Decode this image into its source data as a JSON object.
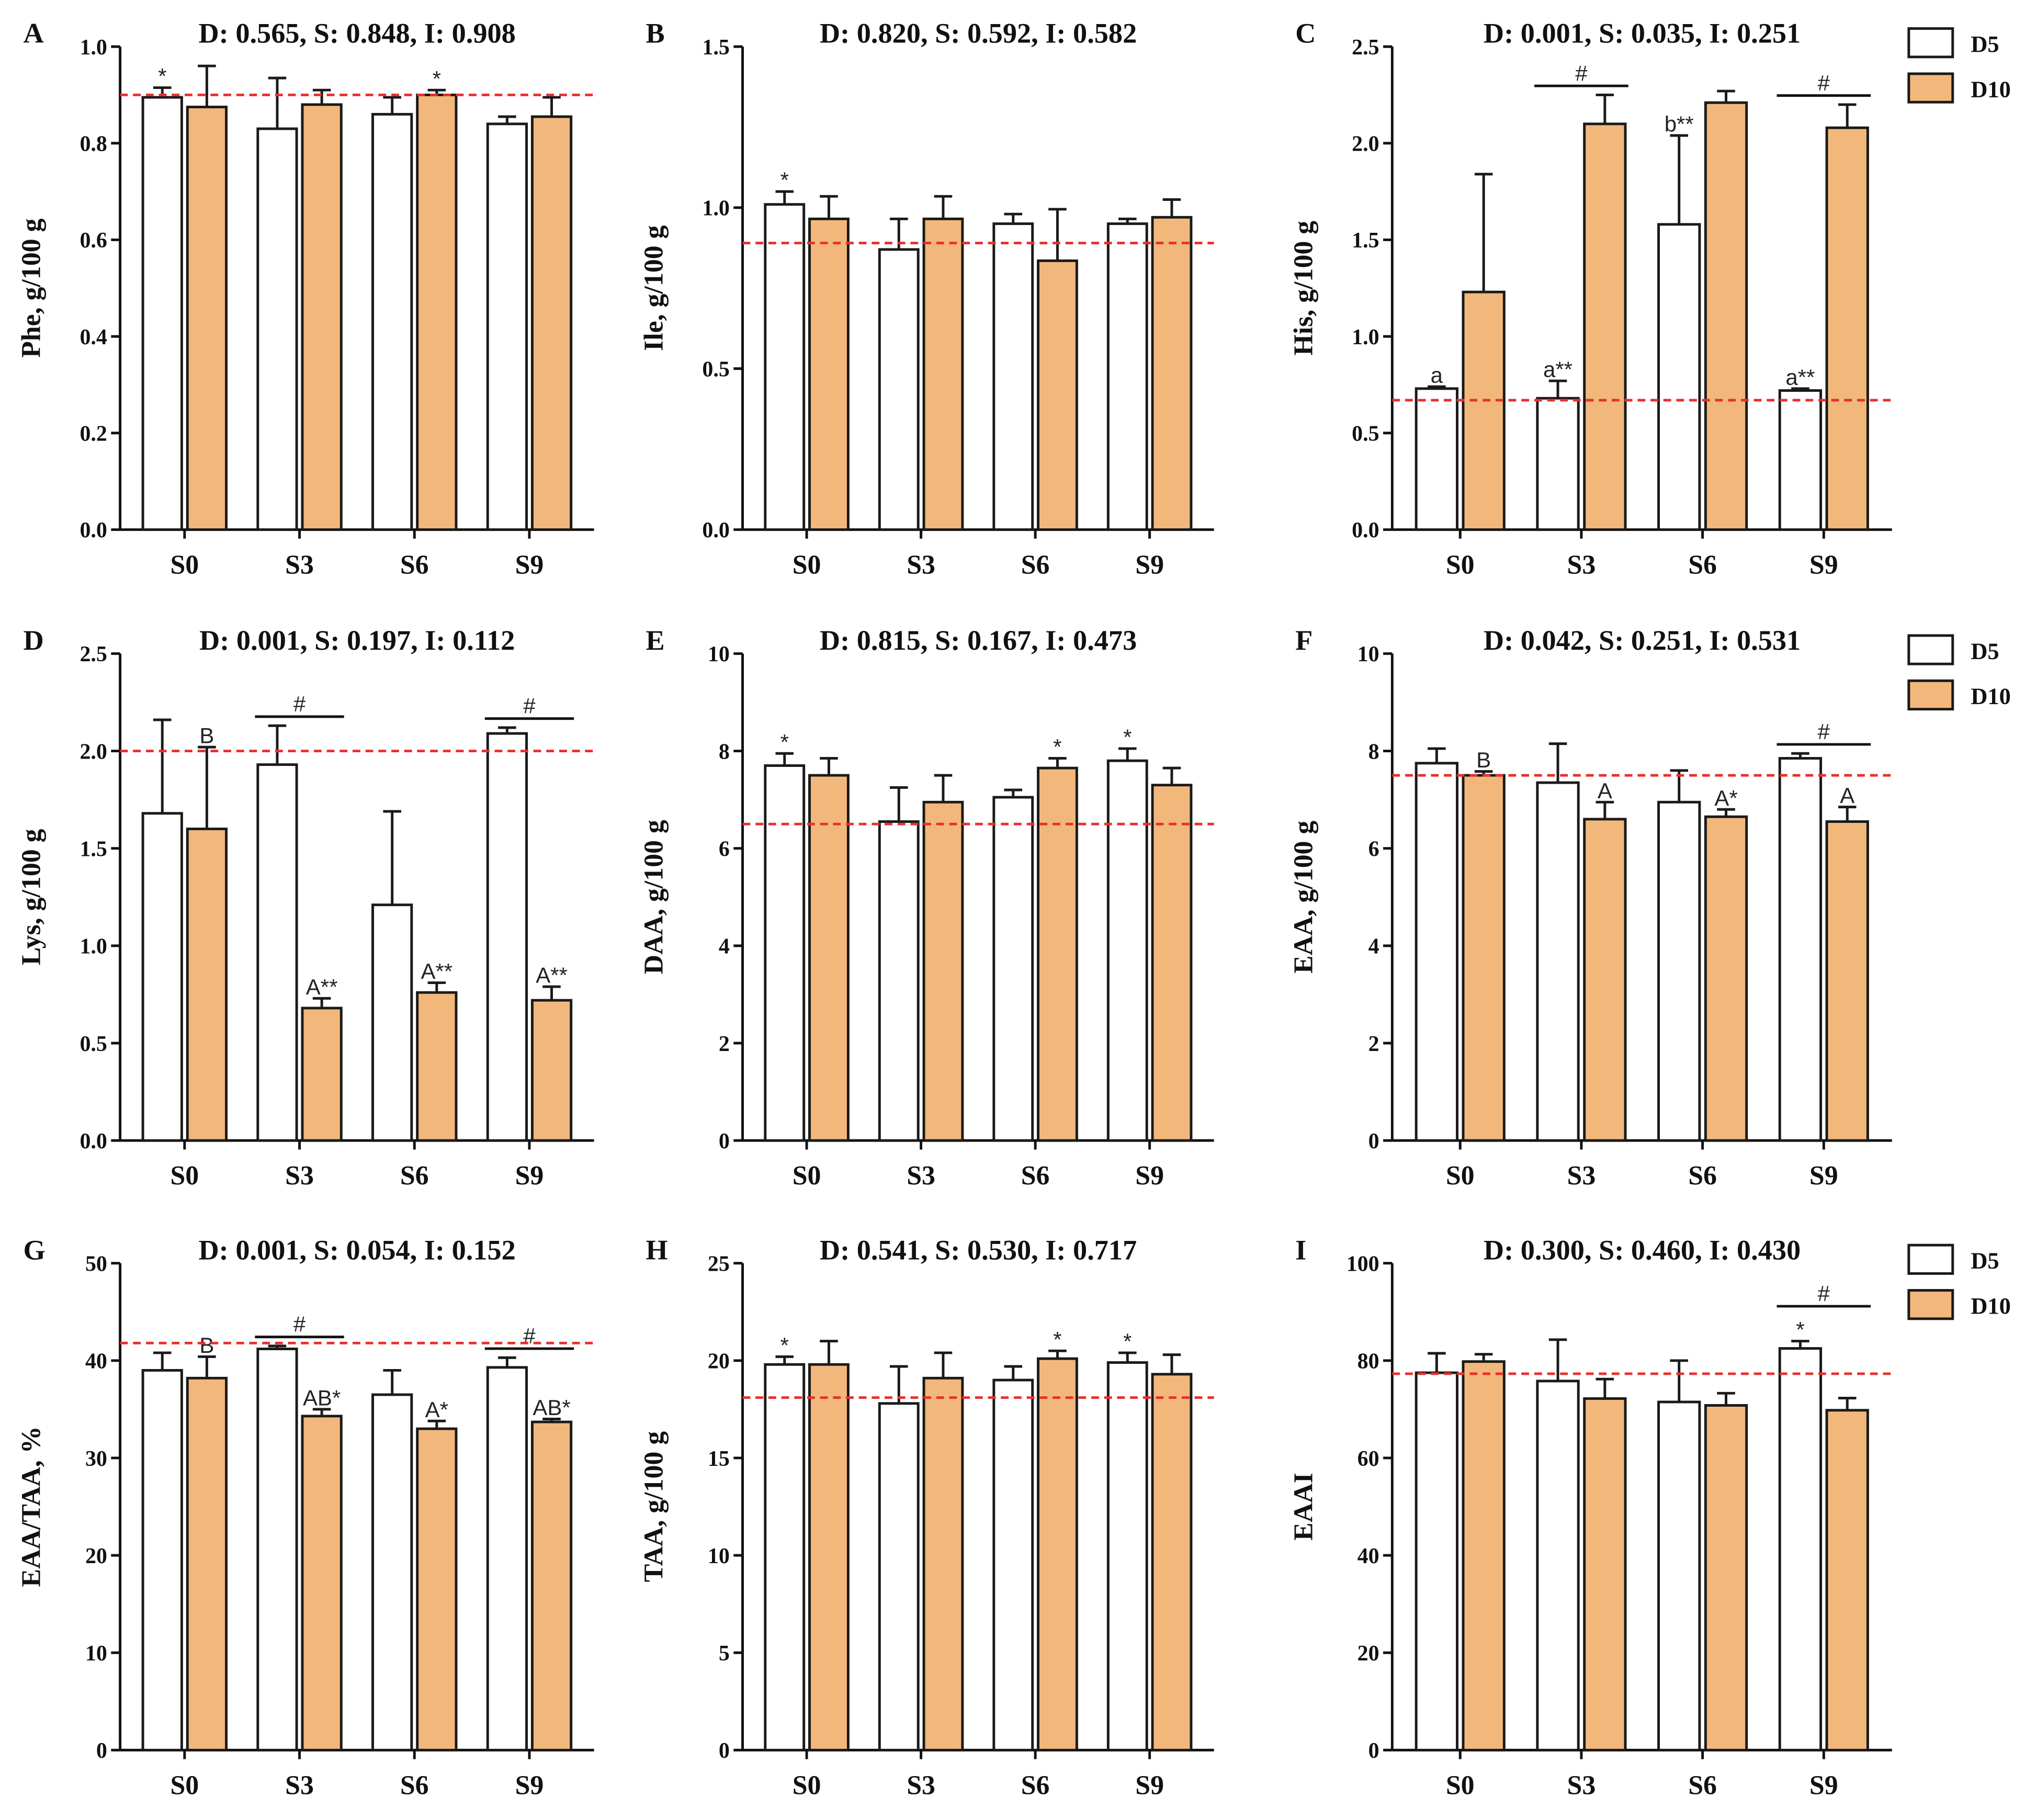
{
  "colors": {
    "D5": "#ffffff",
    "D10": "#f2b87b",
    "outline": "#1a1a1a",
    "ref": "#e8302c"
  },
  "legend": [
    "D5",
    "D10"
  ],
  "chart_data": [
    {
      "type": "bar",
      "panel": "A",
      "title": "D: 0.565, S: 0.848, I: 0.908",
      "ylabel": "Phe, g/100 g",
      "categories": [
        "S0",
        "S3",
        "S6",
        "S9"
      ],
      "ylim": [
        0,
        1.0
      ],
      "yticks": [
        "0.0",
        "0.2",
        "0.4",
        "0.6",
        "0.8",
        "1.0"
      ],
      "ref": 0.9,
      "series": [
        {
          "name": "D5",
          "values": [
            0.895,
            0.83,
            0.86,
            0.84
          ],
          "errors": [
            0.02,
            0.105,
            0.035,
            0.015
          ],
          "annotations": [
            "*",
            "",
            "",
            ""
          ]
        },
        {
          "name": "D10",
          "values": [
            0.875,
            0.88,
            0.9,
            0.855
          ],
          "errors": [
            0.085,
            0.03,
            0.01,
            0.04
          ],
          "annotations": [
            "",
            "",
            "*",
            ""
          ]
        }
      ],
      "brackets": [
        "",
        "",
        "",
        ""
      ]
    },
    {
      "type": "bar",
      "panel": "B",
      "title": "D: 0.820, S: 0.592, I: 0.582",
      "ylabel": "Ile, g/100 g",
      "categories": [
        "S0",
        "S3",
        "S6",
        "S9"
      ],
      "ylim": [
        0,
        1.5
      ],
      "yticks": [
        "0.0",
        "0.5",
        "1.0",
        "1.5"
      ],
      "ref": 0.89,
      "series": [
        {
          "name": "D5",
          "values": [
            1.01,
            0.87,
            0.95,
            0.95
          ],
          "errors": [
            0.04,
            0.095,
            0.03,
            0.015
          ],
          "annotations": [
            "*",
            "",
            "",
            ""
          ]
        },
        {
          "name": "D10",
          "values": [
            0.965,
            0.965,
            0.835,
            0.97
          ],
          "errors": [
            0.07,
            0.07,
            0.16,
            0.055
          ],
          "annotations": [
            "",
            "",
            "",
            ""
          ]
        }
      ],
      "brackets": [
        "",
        "",
        "",
        ""
      ]
    },
    {
      "type": "bar",
      "panel": "C",
      "title": "D: 0.001, S: 0.035, I: 0.251",
      "ylabel": "His, g/100 g",
      "categories": [
        "S0",
        "S3",
        "S6",
        "S9"
      ],
      "ylim": [
        0,
        2.5
      ],
      "yticks": [
        "0.0",
        "0.5",
        "1.0",
        "1.5",
        "2.0",
        "2.5"
      ],
      "ref": 0.67,
      "legend": true,
      "series": [
        {
          "name": "D5",
          "values": [
            0.73,
            0.68,
            1.58,
            0.72
          ],
          "errors": [
            0.01,
            0.09,
            0.46,
            0.01
          ],
          "annotations": [
            "a",
            "a**",
            "b**",
            "a**"
          ]
        },
        {
          "name": "D10",
          "values": [
            1.23,
            2.1,
            2.21,
            2.08
          ],
          "errors": [
            0.61,
            0.15,
            0.06,
            0.12
          ],
          "annotations": [
            "",
            "",
            "",
            ""
          ]
        }
      ],
      "brackets": [
        "",
        "#",
        "",
        "#"
      ]
    },
    {
      "type": "bar",
      "panel": "D",
      "title": "D: 0.001, S: 0.197, I: 0.112",
      "ylabel": "Lys, g/100 g",
      "categories": [
        "S0",
        "S3",
        "S6",
        "S9"
      ],
      "ylim": [
        0,
        2.5
      ],
      "yticks": [
        "0.0",
        "0.5",
        "1.0",
        "1.5",
        "2.0",
        "2.5"
      ],
      "ref": 2.0,
      "series": [
        {
          "name": "D5",
          "values": [
            1.68,
            1.93,
            1.21,
            2.09
          ],
          "errors": [
            0.48,
            0.2,
            0.48,
            0.03
          ],
          "annotations": [
            "",
            "",
            "",
            ""
          ]
        },
        {
          "name": "D10",
          "values": [
            1.6,
            0.68,
            0.76,
            0.72
          ],
          "errors": [
            0.42,
            0.05,
            0.05,
            0.07
          ],
          "annotations": [
            "B",
            "A**",
            "A**",
            "A**"
          ]
        }
      ],
      "brackets": [
        "",
        "#",
        "",
        "#"
      ]
    },
    {
      "type": "bar",
      "panel": "E",
      "title": "D: 0.815, S: 0.167, I: 0.473",
      "ylabel": "DAA, g/100 g",
      "categories": [
        "S0",
        "S3",
        "S6",
        "S9"
      ],
      "ylim": [
        0,
        10
      ],
      "yticks": [
        "0",
        "2",
        "4",
        "6",
        "8",
        "10"
      ],
      "ref": 6.5,
      "series": [
        {
          "name": "D5",
          "values": [
            7.7,
            6.55,
            7.05,
            7.8
          ],
          "errors": [
            0.25,
            0.7,
            0.15,
            0.25
          ],
          "annotations": [
            "*",
            "",
            "",
            "*"
          ]
        },
        {
          "name": "D10",
          "values": [
            7.5,
            6.95,
            7.65,
            7.3
          ],
          "errors": [
            0.35,
            0.55,
            0.2,
            0.35
          ],
          "annotations": [
            "",
            "",
            "*",
            ""
          ]
        }
      ],
      "brackets": [
        "",
        "",
        "",
        ""
      ]
    },
    {
      "type": "bar",
      "panel": "F",
      "title": "D: 0.042, S: 0.251, I: 0.531",
      "ylabel": "EAA, g/100 g",
      "categories": [
        "S0",
        "S3",
        "S6",
        "S9"
      ],
      "ylim": [
        0,
        10
      ],
      "yticks": [
        "0",
        "2",
        "4",
        "6",
        "8",
        "10"
      ],
      "ref": 7.5,
      "legend": true,
      "series": [
        {
          "name": "D5",
          "values": [
            7.75,
            7.35,
            6.95,
            7.85
          ],
          "errors": [
            0.3,
            0.8,
            0.65,
            0.1
          ],
          "annotations": [
            "",
            "",
            "",
            ""
          ]
        },
        {
          "name": "D10",
          "values": [
            7.5,
            6.6,
            6.65,
            6.55
          ],
          "errors": [
            0.08,
            0.35,
            0.15,
            0.3
          ],
          "annotations": [
            "B",
            "A",
            "A*",
            "A"
          ]
        }
      ],
      "brackets": [
        "",
        "",
        "",
        "#"
      ]
    },
    {
      "type": "bar",
      "panel": "G",
      "title": "D: 0.001, S: 0.054, I: 0.152",
      "ylabel": "EAA/TAA, %",
      "categories": [
        "S0",
        "S3",
        "S6",
        "S9"
      ],
      "ylim": [
        0,
        50
      ],
      "yticks": [
        "0",
        "10",
        "20",
        "30",
        "40",
        "50"
      ],
      "ref": 41.8,
      "series": [
        {
          "name": "D5",
          "values": [
            39.0,
            41.2,
            36.5,
            39.3
          ],
          "errors": [
            1.8,
            0.3,
            2.5,
            1.0
          ],
          "annotations": [
            "",
            "",
            "",
            ""
          ]
        },
        {
          "name": "D10",
          "values": [
            38.2,
            34.3,
            33.0,
            33.7
          ],
          "errors": [
            2.2,
            0.7,
            0.8,
            0.3
          ],
          "annotations": [
            "B",
            "AB*",
            "A*",
            "AB*"
          ]
        }
      ],
      "brackets": [
        "",
        "#",
        "",
        "#"
      ]
    },
    {
      "type": "bar",
      "panel": "H",
      "title": "D: 0.541, S: 0.530, I: 0.717",
      "ylabel": "TAA, g/100 g",
      "categories": [
        "S0",
        "S3",
        "S6",
        "S9"
      ],
      "ylim": [
        0,
        25
      ],
      "yticks": [
        "0",
        "5",
        "10",
        "15",
        "20",
        "25"
      ],
      "ref": 18.1,
      "series": [
        {
          "name": "D5",
          "values": [
            19.8,
            17.8,
            19.0,
            19.9
          ],
          "errors": [
            0.4,
            1.9,
            0.7,
            0.5
          ],
          "annotations": [
            "*",
            "",
            "",
            "*"
          ]
        },
        {
          "name": "D10",
          "values": [
            19.8,
            19.1,
            20.1,
            19.3
          ],
          "errors": [
            1.2,
            1.3,
            0.4,
            1.0
          ],
          "annotations": [
            "",
            "",
            "*",
            ""
          ]
        }
      ],
      "brackets": [
        "",
        "",
        "",
        ""
      ]
    },
    {
      "type": "bar",
      "panel": "I",
      "title": "D: 0.300, S: 0.460, I: 0.430",
      "ylabel": "EAAI",
      "categories": [
        "S0",
        "S3",
        "S6",
        "S9"
      ],
      "ylim": [
        0,
        100
      ],
      "yticks": [
        "0",
        "20",
        "40",
        "60",
        "80",
        "100"
      ],
      "ref": 77.3,
      "legend": true,
      "series": [
        {
          "name": "D5",
          "values": [
            77.5,
            75.8,
            71.5,
            82.5
          ],
          "errors": [
            4,
            8.5,
            8.5,
            1.5
          ],
          "annotations": [
            "",
            "",
            "",
            "*"
          ]
        },
        {
          "name": "D10",
          "values": [
            79.8,
            72.2,
            70.8,
            69.8
          ],
          "errors": [
            1.5,
            4,
            2.5,
            2.5
          ],
          "annotations": [
            "",
            "",
            "",
            ""
          ]
        }
      ],
      "brackets": [
        "",
        "",
        "",
        "#"
      ]
    }
  ]
}
